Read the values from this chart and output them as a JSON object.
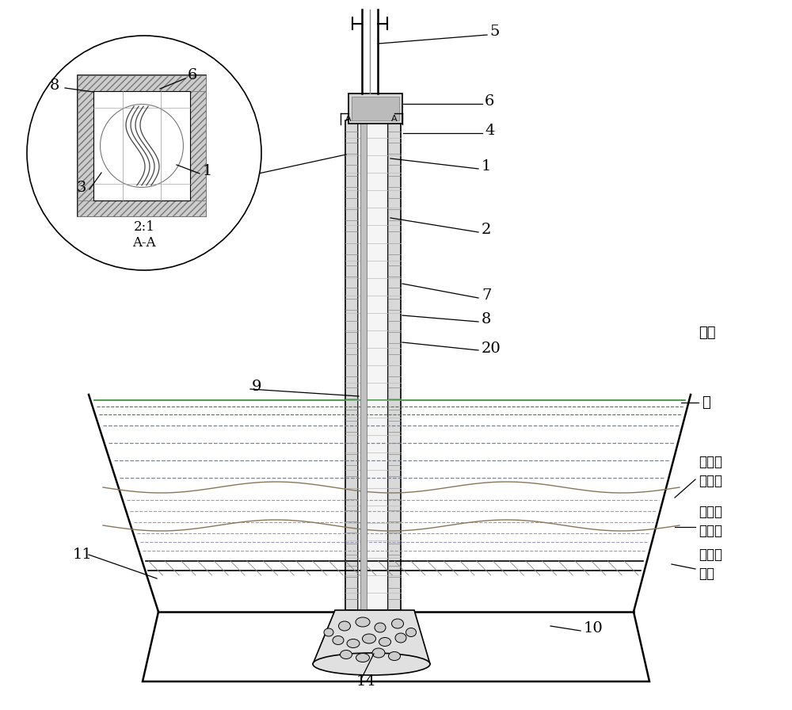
{
  "bg_color": "#ffffff",
  "line_color": "#000000",
  "labels": {
    "air": "空气",
    "water": "水",
    "high_mud": "高含水\n率淤泥",
    "low_mud": "低含水\n率淤泥",
    "bed": "河床或\n渠底"
  }
}
